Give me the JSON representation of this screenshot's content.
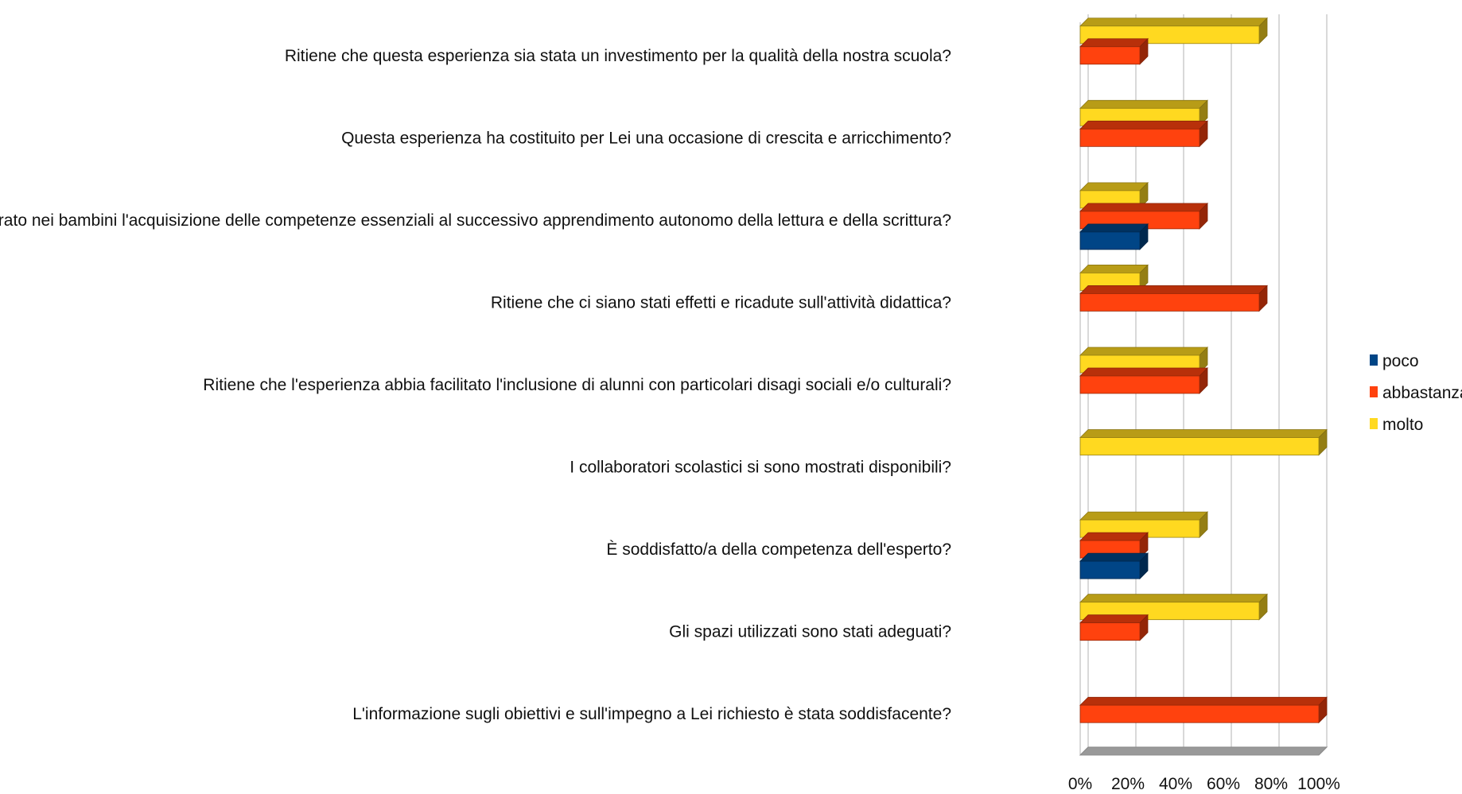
{
  "chart_data": {
    "type": "bar",
    "orientation": "horizontal",
    "categories": [
      "Ritiene che questa esperienza sia stata un investimento per la qualità della nostra scuola?",
      "Questa esperienza ha costituito per Lei una occasione di crescita e arricchimento?",
      "Ritiene che il Pon abbia migliorato nei bambini l'acquisizione delle competenze essenziali al successivo apprendimento autonomo della lettura e della scrittura?",
      "Ritiene che ci siano stati effetti e ricadute sull'attività didattica?",
      "Ritiene che l'esperienza abbia facilitato l'inclusione di alunni con particolari disagi sociali e/o culturali?",
      "I collaboratori scolastici si sono mostrati disponibili?",
      "È soddisfatto/a della competenza dell'esperto?",
      "Gli spazi utilizzati sono stati adeguati?",
      "L'informazione sugli obiettivi e sull'impegno a Lei richiesto è stata soddisfacente?"
    ],
    "series": [
      {
        "name": "molto",
        "color": "#FFD920",
        "values": [
          75,
          50,
          25,
          25,
          50,
          100,
          50,
          75,
          0
        ]
      },
      {
        "name": "abbastanza",
        "color": "#FF420E",
        "values": [
          25,
          50,
          50,
          75,
          50,
          0,
          25,
          25,
          100
        ]
      },
      {
        "name": "poco",
        "color": "#004586",
        "values": [
          0,
          0,
          25,
          0,
          0,
          0,
          25,
          0,
          0
        ]
      }
    ],
    "legend_order": [
      "poco",
      "abbastanza",
      "molto"
    ],
    "xticks": [
      "0%",
      "20%",
      "40%",
      "60%",
      "80%",
      "100%"
    ],
    "xlim": [
      0,
      100
    ],
    "grid": true,
    "legend_position": "right",
    "title": "",
    "xlabel": "",
    "ylabel": ""
  }
}
